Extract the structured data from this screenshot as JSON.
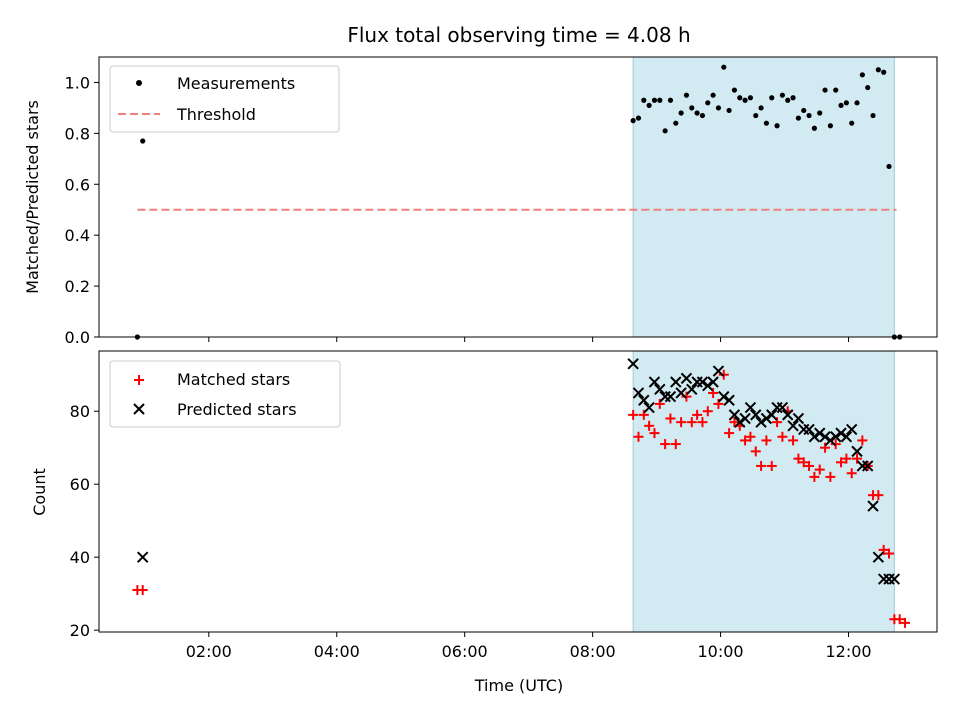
{
  "chart_data": [
    {
      "type": "scatter",
      "title": "Flux total observing time = 4.08 h",
      "ylabel": "Matched/Predicted stars",
      "xlim": [
        "00:17",
        "13:23"
      ],
      "ylim": [
        0,
        1.1
      ],
      "x_ticks": [
        "02:00",
        "04:00",
        "06:00",
        "08:00",
        "10:00",
        "12:00"
      ],
      "y_ticks": [
        "0.0",
        "0.2",
        "0.4",
        "0.6",
        "0.8",
        "1.0"
      ],
      "legend": {
        "position": "upper-left",
        "entries": [
          "Measurements",
          "Threshold"
        ]
      },
      "shaded_interval": [
        "08:38",
        "12:43"
      ],
      "shade_color": "#add8e6",
      "threshold": {
        "name": "Threshold",
        "value": 0.5,
        "x_range": [
          "00:53",
          "12:45"
        ],
        "color": "#f08080",
        "style": "dashed"
      },
      "series": [
        {
          "name": "Measurements",
          "color": "#000000",
          "x": [
            "00:53",
            "00:58",
            "08:38",
            "08:43",
            "08:48",
            "08:53",
            "08:58",
            "09:03",
            "09:08",
            "09:13",
            "09:18",
            "09:23",
            "09:28",
            "09:33",
            "09:38",
            "09:43",
            "09:48",
            "09:53",
            "09:58",
            "10:03",
            "10:08",
            "10:13",
            "10:18",
            "10:23",
            "10:28",
            "10:33",
            "10:38",
            "10:43",
            "10:48",
            "10:53",
            "10:58",
            "11:03",
            "11:08",
            "11:13",
            "11:18",
            "11:23",
            "11:28",
            "11:33",
            "11:38",
            "11:43",
            "11:48",
            "11:53",
            "11:58",
            "12:03",
            "12:08",
            "12:13",
            "12:18",
            "12:23",
            "12:28",
            "12:33",
            "12:38",
            "12:43",
            "12:48"
          ],
          "y": [
            0.0,
            0.77,
            0.85,
            0.86,
            0.93,
            0.91,
            0.93,
            0.93,
            0.81,
            0.93,
            0.84,
            0.88,
            0.95,
            0.9,
            0.88,
            0.87,
            0.92,
            0.95,
            0.9,
            1.06,
            0.89,
            0.97,
            0.94,
            0.93,
            0.94,
            0.87,
            0.9,
            0.84,
            0.94,
            0.83,
            0.95,
            0.93,
            0.94,
            0.86,
            0.89,
            0.87,
            0.82,
            0.88,
            0.97,
            0.83,
            0.97,
            0.91,
            0.92,
            0.84,
            0.92,
            1.03,
            0.98,
            0.87,
            1.05,
            1.04,
            0.67,
            0.0,
            0.0
          ]
        }
      ]
    },
    {
      "type": "scatter",
      "xlabel": "Time (UTC)",
      "ylabel": "Count",
      "xlim": [
        "00:17",
        "13:23"
      ],
      "ylim": [
        19.5,
        96.5
      ],
      "x_ticks": [
        "02:00",
        "04:00",
        "06:00",
        "08:00",
        "10:00",
        "12:00"
      ],
      "y_ticks": [
        "20",
        "40",
        "60",
        "80"
      ],
      "legend": {
        "position": "upper-left",
        "entries": [
          "Matched stars",
          "Predicted stars"
        ]
      },
      "shaded_interval": [
        "08:38",
        "12:43"
      ],
      "shade_color": "#add8e6",
      "series": [
        {
          "name": "Matched stars",
          "marker": "plus",
          "color": "#ff0000",
          "x": [
            "00:53",
            "00:58",
            "08:38",
            "08:43",
            "08:48",
            "08:53",
            "08:58",
            "09:03",
            "09:08",
            "09:13",
            "09:18",
            "09:23",
            "09:28",
            "09:33",
            "09:38",
            "09:43",
            "09:48",
            "09:53",
            "09:58",
            "10:03",
            "10:08",
            "10:13",
            "10:18",
            "10:23",
            "10:28",
            "10:33",
            "10:38",
            "10:43",
            "10:48",
            "10:53",
            "10:58",
            "11:03",
            "11:08",
            "11:13",
            "11:18",
            "11:23",
            "11:28",
            "11:33",
            "11:38",
            "11:43",
            "11:48",
            "11:53",
            "11:58",
            "12:03",
            "12:08",
            "12:13",
            "12:18",
            "12:23",
            "12:28",
            "12:33",
            "12:38",
            "12:43",
            "12:48",
            "12:53"
          ],
          "y": [
            31,
            31,
            79,
            73,
            79,
            76,
            74,
            82,
            71,
            78,
            71,
            77,
            84,
            77,
            79,
            77,
            80,
            85,
            82,
            90,
            74,
            77,
            76,
            72,
            73,
            69,
            65,
            72,
            65,
            77,
            73,
            80,
            72,
            67,
            66,
            65,
            62,
            64,
            70,
            62,
            71,
            66,
            67,
            63,
            67,
            72,
            65,
            57,
            57,
            42,
            41,
            23,
            23,
            22
          ]
        },
        {
          "name": "Predicted stars",
          "marker": "x",
          "color": "#000000",
          "x": [
            "00:58",
            "08:38",
            "08:43",
            "08:48",
            "08:53",
            "08:58",
            "09:03",
            "09:08",
            "09:13",
            "09:18",
            "09:23",
            "09:28",
            "09:33",
            "09:38",
            "09:43",
            "09:48",
            "09:53",
            "09:58",
            "10:03",
            "10:08",
            "10:13",
            "10:18",
            "10:23",
            "10:28",
            "10:33",
            "10:38",
            "10:43",
            "10:48",
            "10:53",
            "10:58",
            "11:03",
            "11:08",
            "11:13",
            "11:18",
            "11:23",
            "11:28",
            "11:33",
            "11:38",
            "11:43",
            "11:48",
            "11:53",
            "11:58",
            "12:03",
            "12:08",
            "12:13",
            "12:18",
            "12:23",
            "12:28",
            "12:33",
            "12:38",
            "12:43"
          ],
          "y": [
            40,
            93,
            85,
            83,
            81,
            88,
            86,
            84,
            84,
            88,
            85,
            89,
            86,
            88,
            88,
            87,
            88,
            91,
            84,
            83,
            79,
            77,
            78,
            81,
            79,
            77,
            78,
            79,
            81,
            81,
            79,
            76,
            78,
            75,
            75,
            73,
            74,
            73,
            72,
            73,
            74,
            73,
            75,
            69,
            65,
            65,
            54,
            40,
            34,
            34,
            34
          ]
        }
      ]
    }
  ]
}
